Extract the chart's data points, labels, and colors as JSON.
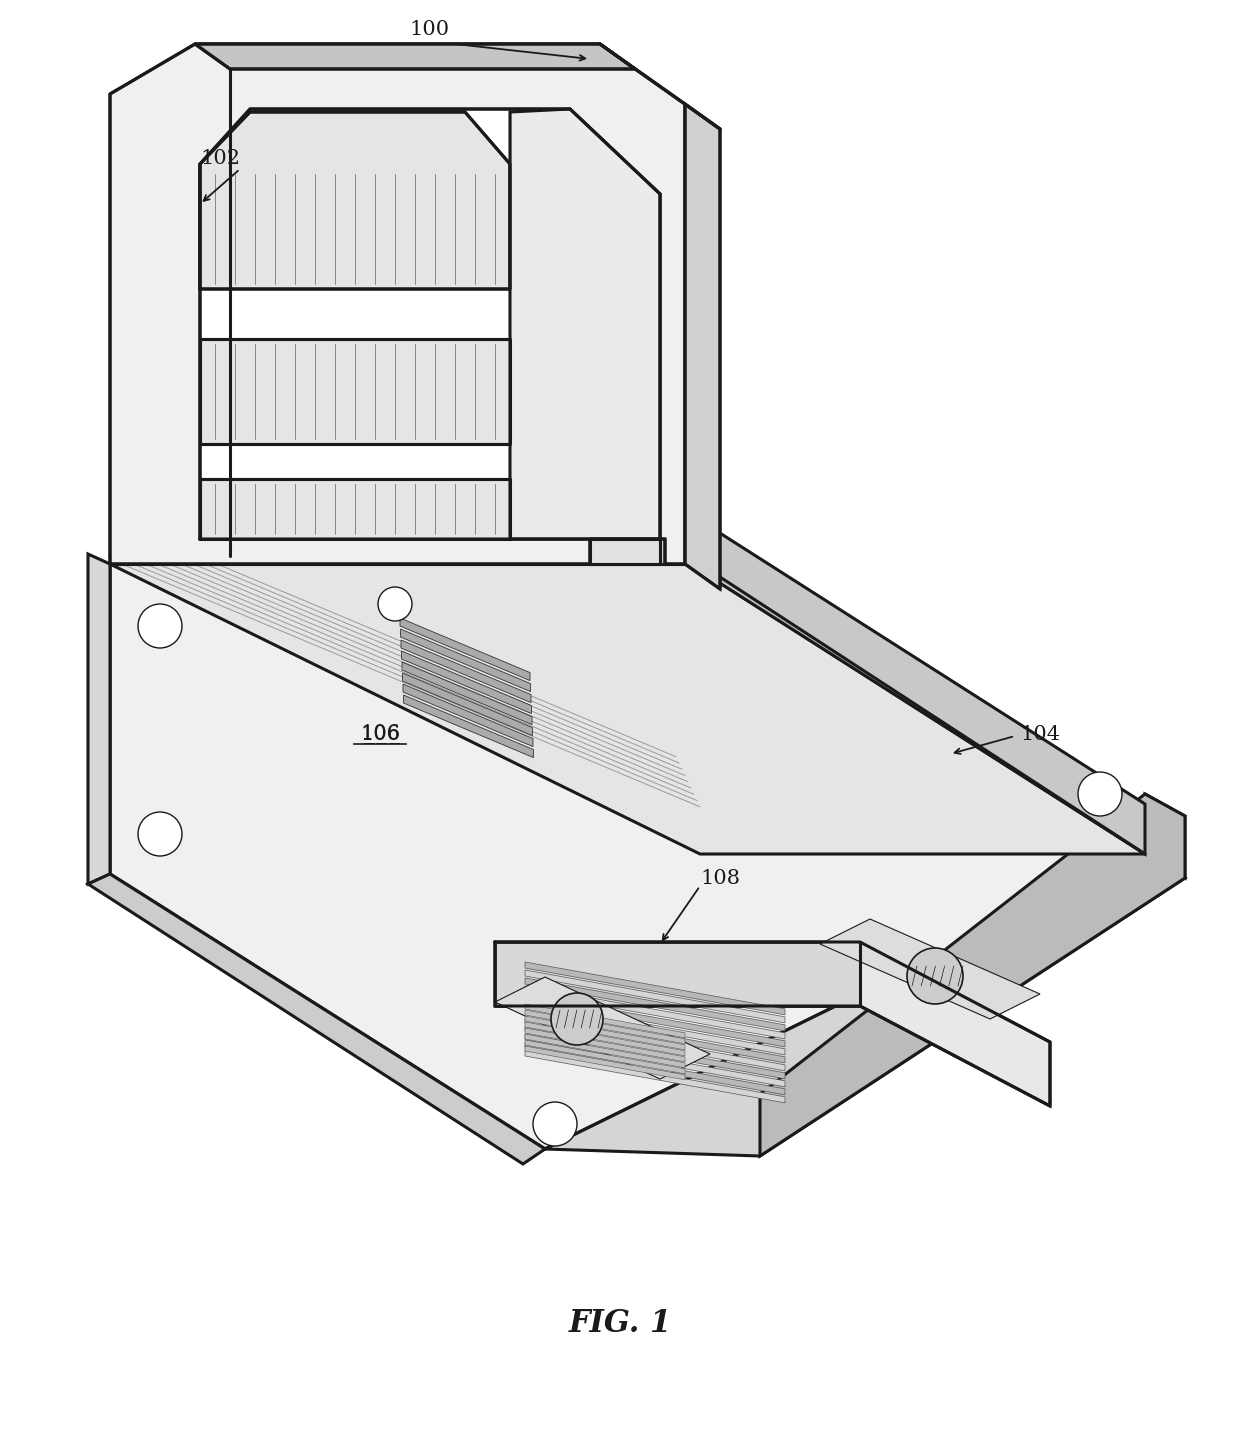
{
  "bg_color": "#ffffff",
  "line_color": "#1a1a1a",
  "lw_main": 2.2,
  "lw_thin": 1.0,
  "lw_hair": 0.5,
  "label_fontsize": 15,
  "fig_caption": "FIG. 1",
  "fig_caption_fontsize": 22
}
